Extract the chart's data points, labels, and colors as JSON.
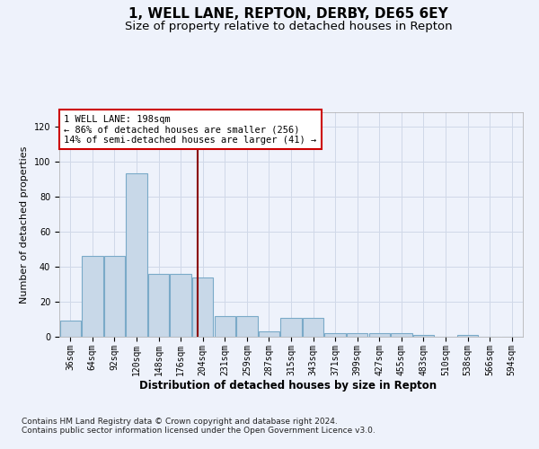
{
  "title": "1, WELL LANE, REPTON, DERBY, DE65 6EY",
  "subtitle": "Size of property relative to detached houses in Repton",
  "xlabel": "Distribution of detached houses by size in Repton",
  "ylabel": "Number of detached properties",
  "categories": [
    "36sqm",
    "64sqm",
    "92sqm",
    "120sqm",
    "148sqm",
    "176sqm",
    "204sqm",
    "231sqm",
    "259sqm",
    "287sqm",
    "315sqm",
    "343sqm",
    "371sqm",
    "399sqm",
    "427sqm",
    "455sqm",
    "483sqm",
    "510sqm",
    "538sqm",
    "566sqm",
    "594sqm"
  ],
  "bar_heights": [
    9,
    46,
    46,
    93,
    36,
    36,
    34,
    12,
    12,
    3,
    11,
    11,
    2,
    2,
    2,
    2,
    1,
    0,
    1,
    0,
    0
  ],
  "bar_color": "#c8d8e8",
  "bar_edgecolor": "#7aaac8",
  "bar_linewidth": 0.8,
  "vline_color": "#8b0000",
  "vline_linewidth": 1.5,
  "annotation_text": "1 WELL LANE: 198sqm\n← 86% of detached houses are smaller (256)\n14% of semi-detached houses are larger (41) →",
  "annotation_box_color": "#ffffff",
  "annotation_box_edgecolor": "#cc0000",
  "ylim": [
    0,
    128
  ],
  "yticks": [
    0,
    20,
    40,
    60,
    80,
    100,
    120
  ],
  "background_color": "#eef2fb",
  "plot_bg_color": "#eef2fb",
  "grid_color": "#d0d8e8",
  "footer_text": "Contains HM Land Registry data © Crown copyright and database right 2024.\nContains public sector information licensed under the Open Government Licence v3.0.",
  "title_fontsize": 11,
  "subtitle_fontsize": 9.5,
  "xlabel_fontsize": 8.5,
  "ylabel_fontsize": 8,
  "tick_fontsize": 7,
  "annotation_fontsize": 7.5,
  "footer_fontsize": 6.5
}
